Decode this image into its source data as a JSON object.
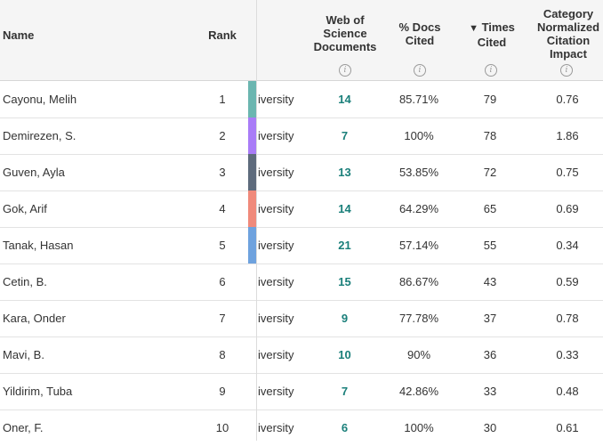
{
  "columns": {
    "name": "Name",
    "rank": "Rank",
    "wos_docs": [
      "Web of",
      "Science",
      "Documents"
    ],
    "pct_cited": [
      "% Docs",
      "Cited"
    ],
    "times_cited_arrow": "▼",
    "times_cited": [
      "Times",
      "Cited"
    ],
    "cnci": [
      "Category",
      "Normalized",
      "Citation",
      "Impact"
    ],
    "info_glyph": "i"
  },
  "colors": {
    "row1": "#6bb6b0",
    "row2": "#a97cf7",
    "row3": "#5e6b7c",
    "row4": "#f08a7b",
    "row5": "#6ea2de",
    "docs_link": "#1a7f7a"
  },
  "rows": [
    {
      "name": "Cayonu, Melih",
      "rank": "1",
      "org": "iversity",
      "docs": "14",
      "pct": "85.71%",
      "cited": "79",
      "cnci": "0.76"
    },
    {
      "name": "Demirezen, S.",
      "rank": "2",
      "org": "iversity",
      "docs": "7",
      "pct": "100%",
      "cited": "78",
      "cnci": "1.86"
    },
    {
      "name": "Guven, Ayla",
      "rank": "3",
      "org": "iversity",
      "docs": "13",
      "pct": "53.85%",
      "cited": "72",
      "cnci": "0.75"
    },
    {
      "name": "Gok, Arif",
      "rank": "4",
      "org": "iversity",
      "docs": "14",
      "pct": "64.29%",
      "cited": "65",
      "cnci": "0.69"
    },
    {
      "name": "Tanak, Hasan",
      "rank": "5",
      "org": "iversity",
      "docs": "21",
      "pct": "57.14%",
      "cited": "55",
      "cnci": "0.34"
    },
    {
      "name": "Cetin, B.",
      "rank": "6",
      "org": "iversity",
      "docs": "15",
      "pct": "86.67%",
      "cited": "43",
      "cnci": "0.59"
    },
    {
      "name": "Kara, Onder",
      "rank": "7",
      "org": "iversity",
      "docs": "9",
      "pct": "77.78%",
      "cited": "37",
      "cnci": "0.78"
    },
    {
      "name": "Mavi, B.",
      "rank": "8",
      "org": "iversity",
      "docs": "10",
      "pct": "90%",
      "cited": "36",
      "cnci": "0.33"
    },
    {
      "name": "Yildirim, Tuba",
      "rank": "9",
      "org": "iversity",
      "docs": "7",
      "pct": "42.86%",
      "cited": "33",
      "cnci": "0.48"
    },
    {
      "name": "Oner, F.",
      "rank": "10",
      "org": "iversity",
      "docs": "6",
      "pct": "100%",
      "cited": "30",
      "cnci": "0.61"
    }
  ]
}
